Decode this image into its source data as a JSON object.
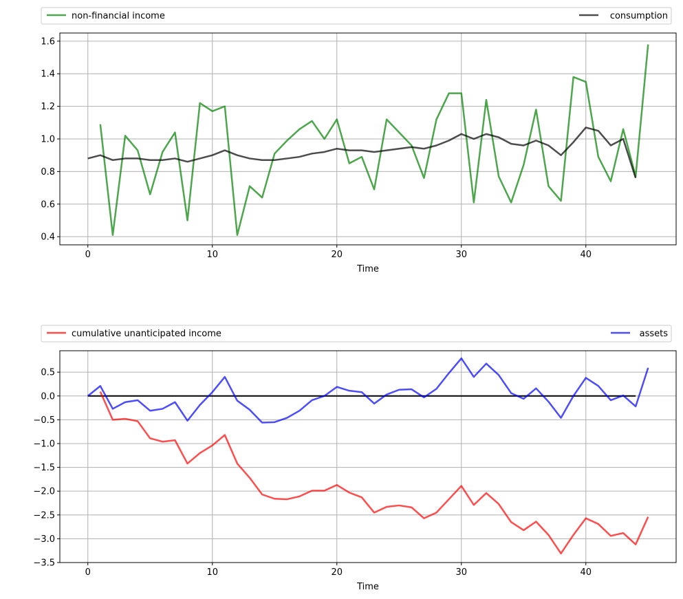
{
  "chart_data": [
    {
      "type": "line",
      "xlabel": "Time",
      "ylabel": "",
      "xlim": [
        -2.25,
        47.25
      ],
      "ylim": [
        0.35,
        1.65
      ],
      "xticks": [
        0,
        10,
        20,
        30,
        40
      ],
      "xtick_labels": [
        "0",
        "10",
        "20",
        "30",
        "40"
      ],
      "yticks": [
        0.4,
        0.6,
        0.8,
        1.0,
        1.2,
        1.4,
        1.6
      ],
      "ytick_labels": [
        "0.4",
        "0.6",
        "0.8",
        "1.0",
        "1.2",
        "1.4",
        "1.6"
      ],
      "grid": true,
      "legend": "above, expanded across axes (non-financial income left, consumption right)",
      "series": [
        {
          "name": "non-financial income",
          "color": "#008000",
          "x_start": 1,
          "values": [
            1.09,
            0.41,
            1.02,
            0.93,
            0.66,
            0.92,
            1.04,
            0.5,
            1.22,
            1.17,
            1.2,
            0.41,
            0.71,
            0.64,
            0.91,
            0.99,
            1.06,
            1.11,
            1.0,
            1.12,
            0.85,
            0.89,
            0.69,
            1.12,
            1.04,
            0.96,
            0.76,
            1.12,
            1.28,
            1.28,
            0.61,
            1.24,
            0.77,
            0.61,
            0.84,
            1.18,
            0.71,
            0.62,
            1.38,
            1.35,
            0.89,
            0.74,
            1.06,
            0.77,
            1.58
          ]
        },
        {
          "name": "consumption",
          "color": "#000000",
          "x_start": 0,
          "values": [
            0.88,
            0.9,
            0.87,
            0.88,
            0.88,
            0.87,
            0.87,
            0.88,
            0.86,
            0.88,
            0.9,
            0.93,
            0.9,
            0.88,
            0.87,
            0.87,
            0.88,
            0.89,
            0.91,
            0.92,
            0.94,
            0.93,
            0.93,
            0.92,
            0.93,
            0.94,
            0.95,
            0.94,
            0.96,
            0.99,
            1.03,
            1.0,
            1.03,
            1.01,
            0.97,
            0.96,
            0.99,
            0.96,
            0.9,
            0.98,
            1.07,
            1.05,
            0.96,
            1.0,
            0.76
          ]
        }
      ]
    },
    {
      "type": "line",
      "xlabel": "Time",
      "ylabel": "",
      "xlim": [
        -2.25,
        47.25
      ],
      "ylim": [
        -3.5,
        0.95
      ],
      "xticks": [
        0,
        10,
        20,
        30,
        40
      ],
      "xtick_labels": [
        "0",
        "10",
        "20",
        "30",
        "40"
      ],
      "yticks": [
        -3.5,
        -3.0,
        -2.5,
        -2.0,
        -1.5,
        -1.0,
        -0.5,
        0.0,
        0.5
      ],
      "ytick_labels": [
        "−3.5",
        "−3.0",
        "−2.5",
        "−2.0",
        "−1.5",
        "−1.0",
        "−0.5",
        "0.0",
        "0.5"
      ],
      "grid": true,
      "hline": {
        "y": 0,
        "x_range": [
          0,
          44
        ],
        "color": "#000000"
      },
      "legend": "above, expanded across axes (cumulative unanticipated income left, assets right)",
      "series": [
        {
          "name": "cumulative unanticipated income",
          "color": "#ff0000",
          "x_start": 1,
          "values": [
            0.09,
            -0.5,
            -0.48,
            -0.53,
            -0.89,
            -0.96,
            -0.93,
            -1.42,
            -1.2,
            -1.04,
            -0.82,
            -1.42,
            -1.72,
            -2.07,
            -2.16,
            -2.17,
            -2.11,
            -1.99,
            -1.99,
            -1.87,
            -2.03,
            -2.13,
            -2.45,
            -2.33,
            -2.3,
            -2.34,
            -2.57,
            -2.45,
            -2.17,
            -1.89,
            -2.29,
            -2.04,
            -2.27,
            -2.65,
            -2.82,
            -2.64,
            -2.92,
            -3.31,
            -2.92,
            -2.57,
            -2.69,
            -2.94,
            -2.88,
            -3.12,
            -2.54
          ]
        },
        {
          "name": "assets",
          "color": "#0000ff",
          "x_start": 0,
          "values": [
            0.0,
            0.21,
            -0.27,
            -0.13,
            -0.09,
            -0.31,
            -0.27,
            -0.13,
            -0.52,
            -0.19,
            0.08,
            0.4,
            -0.1,
            -0.29,
            -0.56,
            -0.55,
            -0.46,
            -0.31,
            -0.09,
            0.0,
            0.19,
            0.11,
            0.08,
            -0.16,
            0.03,
            0.13,
            0.14,
            -0.03,
            0.15,
            0.48,
            0.79,
            0.4,
            0.68,
            0.44,
            0.06,
            -0.06,
            0.16,
            -0.12,
            -0.46,
            0.0,
            0.38,
            0.21,
            -0.09,
            0.01,
            -0.22,
            0.59
          ]
        }
      ]
    }
  ]
}
